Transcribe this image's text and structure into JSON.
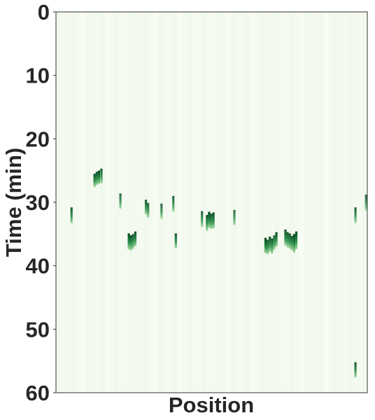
{
  "chart_data": {
    "type": "heatmap",
    "title": "",
    "xlabel": "Position",
    "ylabel": "Time (min)",
    "ylim": [
      0,
      60
    ],
    "y_inverted": true,
    "yticks": [
      "0",
      "10",
      "20",
      "30",
      "40",
      "50",
      "60"
    ],
    "xticks": [],
    "grid": false,
    "colormap": "Greens",
    "background_color": "#f5fbf1",
    "mark_color_dark": "#00441b",
    "mark_color_light": "#a1d99b",
    "position_range": [
      0,
      1
    ],
    "events": [
      {
        "position": 0.05,
        "t_start": 30.8,
        "t_end": 33.3,
        "intensity": 0.9
      },
      {
        "position": 0.124,
        "t_start": 25.5,
        "t_end": 27.6,
        "intensity": 0.95
      },
      {
        "position": 0.131,
        "t_start": 25.2,
        "t_end": 27.3,
        "intensity": 0.95
      },
      {
        "position": 0.138,
        "t_start": 25.0,
        "t_end": 27.1,
        "intensity": 1.0
      },
      {
        "position": 0.146,
        "t_start": 24.7,
        "t_end": 27.0,
        "intensity": 0.9
      },
      {
        "position": 0.207,
        "t_start": 28.6,
        "t_end": 31.0,
        "intensity": 0.8
      },
      {
        "position": 0.234,
        "t_start": 34.9,
        "t_end": 37.4,
        "intensity": 1.0
      },
      {
        "position": 0.241,
        "t_start": 35.2,
        "t_end": 37.6,
        "intensity": 0.95
      },
      {
        "position": 0.248,
        "t_start": 35.0,
        "t_end": 37.3,
        "intensity": 0.9
      },
      {
        "position": 0.255,
        "t_start": 34.6,
        "t_end": 36.9,
        "intensity": 0.95
      },
      {
        "position": 0.289,
        "t_start": 29.6,
        "t_end": 31.9,
        "intensity": 0.9
      },
      {
        "position": 0.296,
        "t_start": 30.1,
        "t_end": 32.4,
        "intensity": 0.85
      },
      {
        "position": 0.339,
        "t_start": 30.2,
        "t_end": 32.6,
        "intensity": 0.8
      },
      {
        "position": 0.377,
        "t_start": 29.0,
        "t_end": 31.5,
        "intensity": 0.85
      },
      {
        "position": 0.385,
        "t_start": 34.9,
        "t_end": 37.2,
        "intensity": 0.9
      },
      {
        "position": 0.469,
        "t_start": 31.4,
        "t_end": 33.9,
        "intensity": 0.85
      },
      {
        "position": 0.485,
        "t_start": 32.0,
        "t_end": 34.5,
        "intensity": 0.9
      },
      {
        "position": 0.492,
        "t_start": 31.5,
        "t_end": 34.0,
        "intensity": 1.0
      },
      {
        "position": 0.499,
        "t_start": 31.8,
        "t_end": 34.2,
        "intensity": 0.9
      },
      {
        "position": 0.506,
        "t_start": 31.6,
        "t_end": 34.1,
        "intensity": 0.95
      },
      {
        "position": 0.573,
        "t_start": 31.2,
        "t_end": 33.6,
        "intensity": 0.8
      },
      {
        "position": 0.673,
        "t_start": 35.6,
        "t_end": 38.0,
        "intensity": 1.0
      },
      {
        "position": 0.68,
        "t_start": 35.9,
        "t_end": 38.2,
        "intensity": 0.9
      },
      {
        "position": 0.687,
        "t_start": 35.4,
        "t_end": 37.8,
        "intensity": 0.95
      },
      {
        "position": 0.694,
        "t_start": 35.7,
        "t_end": 38.1,
        "intensity": 0.9
      },
      {
        "position": 0.701,
        "t_start": 35.2,
        "t_end": 37.5,
        "intensity": 0.85
      },
      {
        "position": 0.708,
        "t_start": 34.7,
        "t_end": 37.0,
        "intensity": 0.95
      },
      {
        "position": 0.737,
        "t_start": 34.3,
        "t_end": 36.8,
        "intensity": 0.95
      },
      {
        "position": 0.744,
        "t_start": 34.7,
        "t_end": 37.1,
        "intensity": 0.9
      },
      {
        "position": 0.751,
        "t_start": 34.9,
        "t_end": 37.3,
        "intensity": 0.95
      },
      {
        "position": 0.758,
        "t_start": 35.3,
        "t_end": 37.6,
        "intensity": 0.9
      },
      {
        "position": 0.765,
        "t_start": 35.0,
        "t_end": 37.9,
        "intensity": 1.0
      },
      {
        "position": 0.772,
        "t_start": 34.6,
        "t_end": 37.4,
        "intensity": 0.95
      },
      {
        "position": 0.962,
        "t_start": 30.8,
        "t_end": 33.3,
        "intensity": 0.85
      },
      {
        "position": 0.996,
        "t_start": 28.8,
        "t_end": 31.3,
        "intensity": 0.8
      },
      {
        "position": 0.962,
        "t_start": 55.2,
        "t_end": 57.6,
        "intensity": 0.9
      }
    ]
  }
}
